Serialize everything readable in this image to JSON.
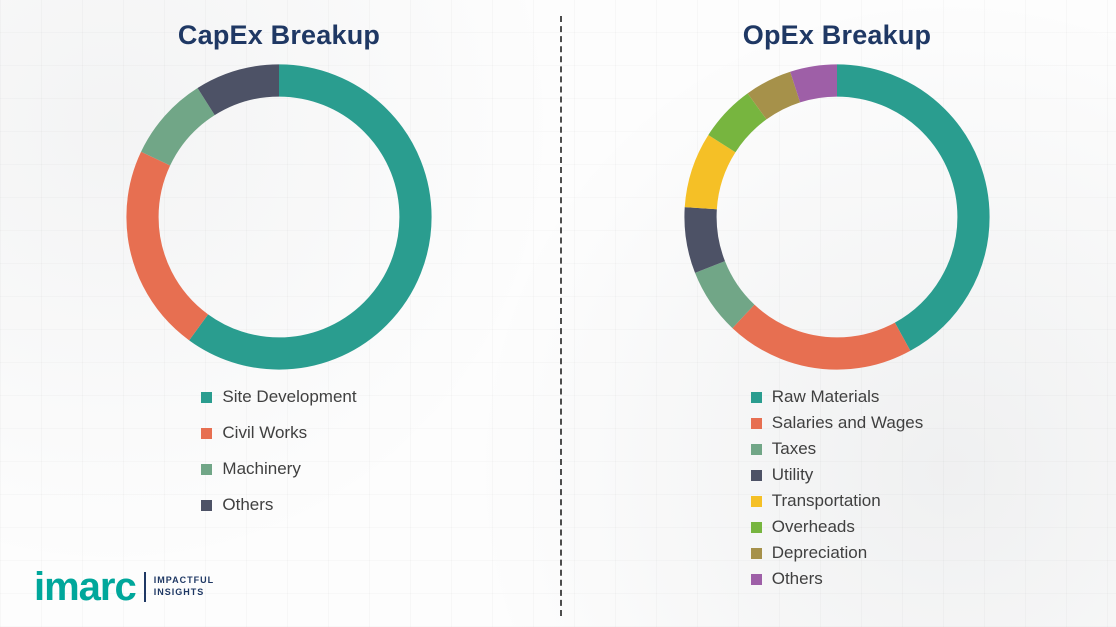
{
  "branding": {
    "logo_text": "imarc",
    "logo_color": "#00a79b",
    "tagline_line1": "IMPACTFUL",
    "tagline_line2": "INSIGHTS",
    "tagline_color": "#1f3864"
  },
  "title_color": "#1f3864",
  "chart_data": [
    {
      "type": "pie",
      "subtype": "donut",
      "title": "CapEx Breakup",
      "labels": [
        "Site Development",
        "Civil Works",
        "Machinery",
        "Others"
      ],
      "values": [
        60,
        22,
        9,
        9
      ],
      "colors": [
        "#2a9d8f",
        "#e76f51",
        "#71a687",
        "#4d5266"
      ],
      "start_angle_deg": 0,
      "direction": "clockwise",
      "legend_position": "bottom",
      "data_labels_shown": false,
      "values_note": "percent, estimated from arc lengths"
    },
    {
      "type": "pie",
      "subtype": "donut",
      "title": "OpEx Breakup",
      "labels": [
        "Raw Materials",
        "Salaries and Wages",
        "Taxes",
        "Utility",
        "Transportation",
        "Overheads",
        "Depreciation",
        "Others"
      ],
      "values": [
        42,
        20,
        7,
        7,
        8,
        6,
        5,
        5
      ],
      "colors": [
        "#2a9d8f",
        "#e76f51",
        "#71a687",
        "#4d5266",
        "#f5c026",
        "#77b53f",
        "#a6914a",
        "#9e5fa7"
      ],
      "start_angle_deg": 0,
      "direction": "clockwise",
      "legend_position": "bottom",
      "data_labels_shown": false,
      "values_note": "percent, estimated from arc lengths"
    }
  ]
}
